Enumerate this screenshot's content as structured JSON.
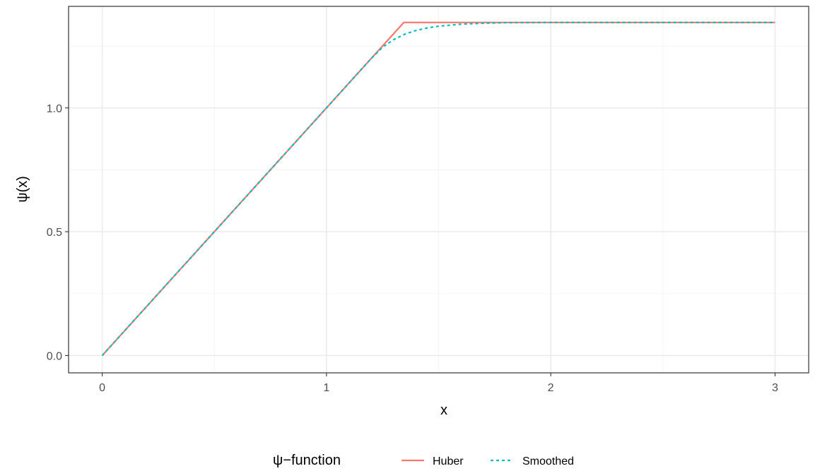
{
  "chart_data": {
    "type": "line",
    "title": "",
    "xlabel": "x",
    "ylabel": "ψ(x)",
    "xlim": [
      -0.15,
      3.15
    ],
    "ylim": [
      -0.07,
      1.41
    ],
    "x_ticks": [
      0,
      1,
      2,
      3
    ],
    "x_tick_labels": [
      "0",
      "1",
      "2",
      "3"
    ],
    "y_ticks": [
      0.0,
      0.5,
      1.0
    ],
    "y_tick_labels": [
      "0.0",
      "0.5",
      "1.0"
    ],
    "grid": true,
    "legend": {
      "title": "ψ−function",
      "position": "bottom"
    },
    "series": [
      {
        "name": "Huber",
        "color": "#F8766D",
        "dash": "solid",
        "x": [
          0,
          1.345,
          1.375,
          3
        ],
        "y": [
          0,
          1.345,
          1.345,
          1.345
        ]
      },
      {
        "name": "Smoothed",
        "color": "#00BFC4",
        "dash": "dashed",
        "x": [
          0,
          0.5,
          1.0,
          1.2,
          1.25,
          1.3,
          1.35,
          1.4,
          1.45,
          1.5,
          1.6,
          1.7,
          1.8,
          2.0,
          2.5,
          3.0
        ],
        "y": [
          0,
          0.5,
          1.0,
          1.2,
          1.245,
          1.276,
          1.298,
          1.313,
          1.323,
          1.33,
          1.338,
          1.342,
          1.344,
          1.345,
          1.345,
          1.345
        ]
      }
    ]
  }
}
